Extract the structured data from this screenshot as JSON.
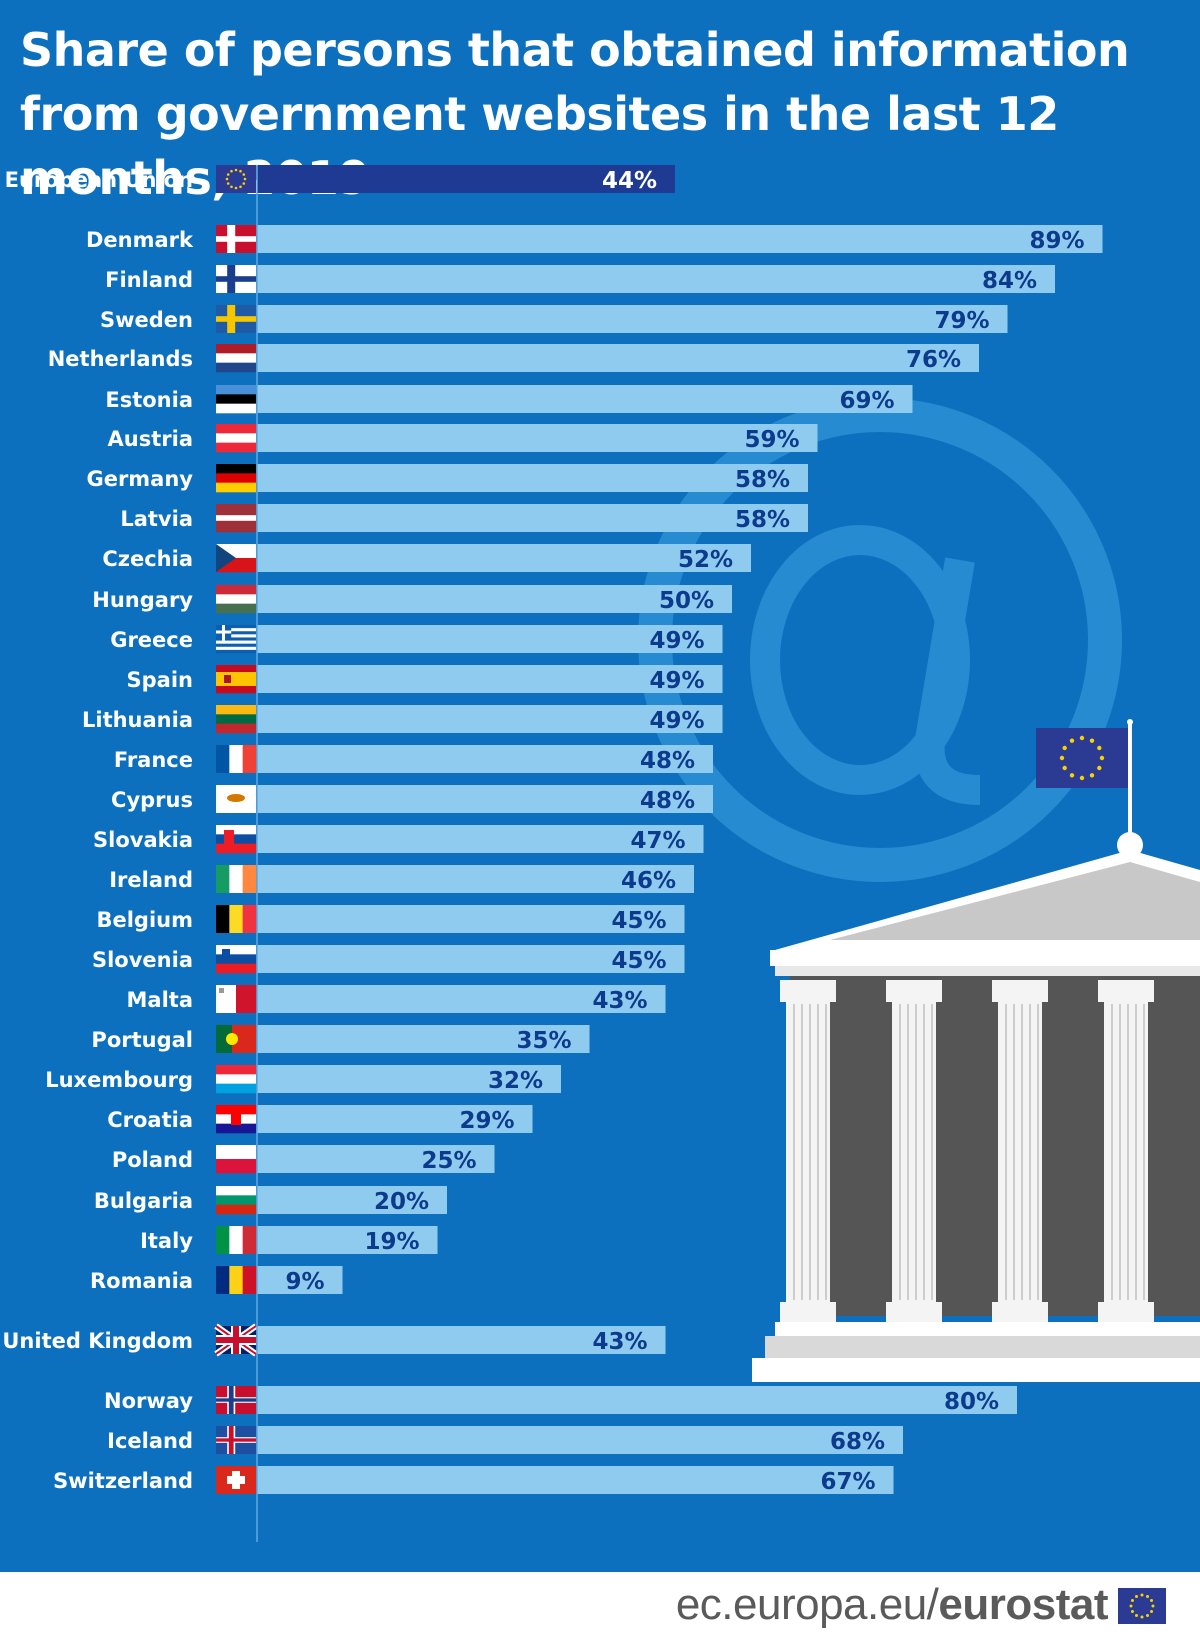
{
  "colors": {
    "background": "#0d70bf",
    "bar": "#8ecbef",
    "bar_eu": "#1f3a93",
    "value_text": "#0c3a8c",
    "label_text": "#ffffff"
  },
  "chart_data": {
    "type": "bar",
    "orientation": "horizontal",
    "title": "Share of persons that obtained information from government websites in the last 12 months, 2019",
    "unit": "%",
    "xlim": [
      0,
      100
    ],
    "grid": false,
    "legend": "none",
    "categories": [
      "European Union",
      "Denmark",
      "Finland",
      "Sweden",
      "Netherlands",
      "Estonia",
      "Austria",
      "Germany",
      "Latvia",
      "Czechia",
      "Hungary",
      "Greece",
      "Spain",
      "Lithuania",
      "France",
      "Cyprus",
      "Slovakia",
      "Ireland",
      "Belgium",
      "Slovenia",
      "Malta",
      "Portugal",
      "Luxembourg",
      "Croatia",
      "Poland",
      "Bulgaria",
      "Italy",
      "Romania",
      "United Kingdom",
      "Norway",
      "Iceland",
      "Switzerland"
    ],
    "values": [
      44,
      89,
      84,
      79,
      76,
      69,
      59,
      58,
      58,
      52,
      50,
      49,
      49,
      49,
      48,
      48,
      47,
      46,
      45,
      45,
      43,
      35,
      32,
      29,
      25,
      20,
      19,
      9,
      43,
      80,
      68,
      67
    ],
    "value_labels": [
      "44%",
      "89%",
      "84%",
      "79%",
      "76%",
      "69%",
      "59%",
      "58%",
      "58%",
      "52%",
      "50%",
      "49%",
      "49%",
      "49%",
      "48%",
      "48%",
      "47%",
      "46%",
      "45%",
      "45%",
      "43%",
      "35%",
      "32%",
      "29%",
      "25%",
      "20%",
      "19%",
      "9%",
      "43%",
      "80%",
      "68%",
      "67%"
    ],
    "highlight": [
      "European Union"
    ]
  },
  "flags": [
    "eu",
    "denmark",
    "finland",
    "sweden",
    "netherlands",
    "estonia",
    "austria",
    "germany",
    "latvia",
    "czechia",
    "hungary",
    "greece",
    "spain",
    "lithuania",
    "france",
    "cyprus",
    "slovakia",
    "ireland",
    "belgium",
    "slovenia",
    "malta",
    "portugal",
    "luxembourg",
    "croatia",
    "poland",
    "bulgaria",
    "italy",
    "romania",
    "united-kingdom",
    "norway",
    "iceland",
    "switzerland"
  ],
  "footer": {
    "source_prefix": "ec.europa.eu/",
    "source_brand": "eurostat"
  }
}
